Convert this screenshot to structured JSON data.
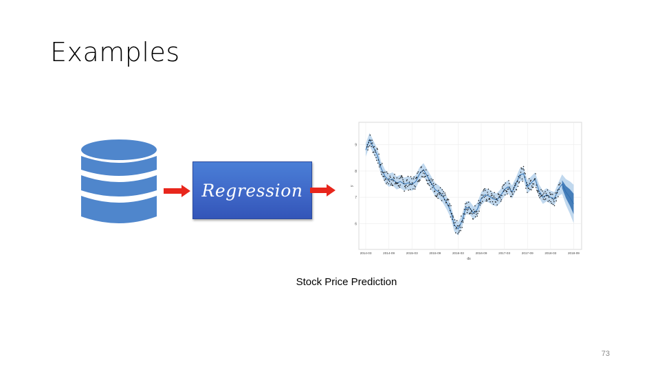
{
  "slide": {
    "title": "Examples",
    "page_number": "73",
    "caption": "Stock Price Prediction",
    "process_label": "Regression"
  },
  "icons": {
    "database": "database-icon",
    "arrow": "arrow-right-icon"
  },
  "colors": {
    "database_blue": "#4f86cc",
    "arrow_red": "#e8261c",
    "box_blue": "#3f68c8",
    "forecast_band": "#b9d4ec",
    "forecast_line": "#2f6fb0"
  },
  "chart_data": {
    "type": "line",
    "xlabel": "ds",
    "ylabel": "y",
    "x_tick_labels": [
      "2014-03",
      "2014-09",
      "2015-03",
      "2015-09",
      "2016-03",
      "2016-09",
      "2017-03",
      "2017-09",
      "2018-03",
      "2018-09"
    ],
    "y_ticks": [
      6,
      7,
      8,
      9
    ],
    "ylim": [
      5.1,
      9.8
    ],
    "x_range_months": [
      0,
      55
    ],
    "grid": true,
    "series": [
      {
        "role": "forecast",
        "x_months": [
          0,
          1,
          2,
          3,
          4,
          5,
          6,
          7,
          8,
          9,
          10,
          11,
          12,
          13,
          14,
          15,
          16,
          17,
          18,
          19,
          20,
          21,
          22,
          23,
          24,
          25,
          26,
          27,
          28,
          29,
          30,
          31,
          32,
          33,
          34,
          35,
          36,
          37,
          38,
          39,
          40,
          41,
          42,
          43,
          44,
          45,
          46,
          47,
          48,
          49,
          50,
          51,
          52,
          53,
          54
        ],
        "yhat": [
          8.8,
          9.2,
          8.9,
          8.6,
          8.1,
          7.8,
          7.65,
          7.7,
          7.55,
          7.6,
          7.5,
          7.55,
          7.5,
          7.6,
          7.9,
          8.05,
          7.8,
          7.55,
          7.3,
          7.2,
          7.05,
          6.8,
          6.5,
          5.95,
          5.8,
          6.1,
          6.6,
          6.6,
          6.4,
          6.55,
          6.95,
          7.1,
          7.05,
          6.95,
          6.9,
          7.05,
          7.3,
          7.4,
          7.2,
          7.5,
          7.85,
          7.9,
          7.4,
          7.55,
          7.7,
          7.25,
          7.0,
          7.1,
          7.0,
          6.95,
          7.3,
          7.5,
          7.2,
          7.0,
          6.75
        ],
        "band": 0.25
      }
    ]
  }
}
